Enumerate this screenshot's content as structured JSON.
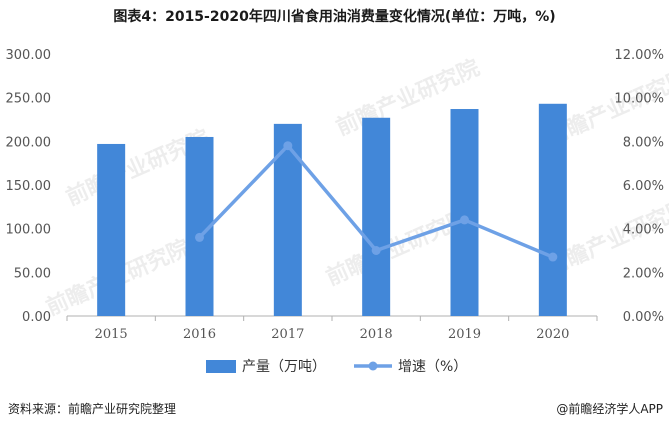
{
  "title": "图表4：2015-2020年四川省食用油消费量变化情况(单位：万吨，%)",
  "source": "资料来源：前瞻产业研究院整理",
  "credit": "@前瞻经济学人APP",
  "watermark": "前瞻产业研究院",
  "colors": {
    "bar": "#4287d8",
    "line": "#6ea1e6",
    "axis": "#b0b0b0",
    "text": "#555555"
  },
  "chart_data": {
    "type": "bar",
    "categories": [
      "2015",
      "2016",
      "2017",
      "2018",
      "2019",
      "2020"
    ],
    "series": [
      {
        "name": "产量（万吨）",
        "type": "bar",
        "axis": "left",
        "values": [
          197,
          205,
          220,
          227,
          237,
          243
        ]
      },
      {
        "name": "增速（%）",
        "type": "line",
        "axis": "right",
        "values": [
          null,
          3.6,
          7.8,
          3.0,
          4.4,
          2.7
        ]
      }
    ],
    "ylim_left": [
      0,
      300
    ],
    "yticks_left": [
      "0.00",
      "50.00",
      "100.00",
      "150.00",
      "200.00",
      "250.00",
      "300.00"
    ],
    "ylim_right": [
      0,
      12
    ],
    "yticks_right": [
      "0.00%",
      "2.00%",
      "4.00%",
      "6.00%",
      "8.00%",
      "10.00%",
      "12.00%"
    ],
    "legend_position": "bottom"
  }
}
